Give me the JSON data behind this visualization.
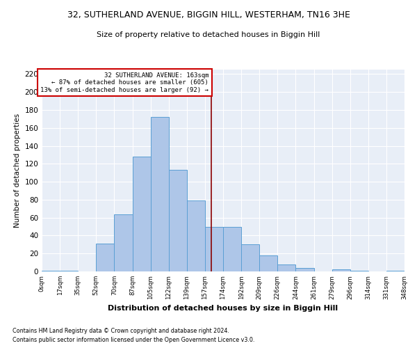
{
  "title": "32, SUTHERLAND AVENUE, BIGGIN HILL, WESTERHAM, TN16 3HE",
  "subtitle": "Size of property relative to detached houses in Biggin Hill",
  "xlabel": "Distribution of detached houses by size in Biggin Hill",
  "ylabel": "Number of detached properties",
  "footer1": "Contains HM Land Registry data © Crown copyright and database right 2024.",
  "footer2": "Contains public sector information licensed under the Open Government Licence v3.0.",
  "bin_labels": [
    "0sqm",
    "17sqm",
    "35sqm",
    "52sqm",
    "70sqm",
    "87sqm",
    "105sqm",
    "122sqm",
    "139sqm",
    "157sqm",
    "174sqm",
    "192sqm",
    "209sqm",
    "226sqm",
    "244sqm",
    "261sqm",
    "279sqm",
    "296sqm",
    "314sqm",
    "331sqm",
    "348sqm"
  ],
  "bar_heights": [
    1,
    1,
    0,
    31,
    64,
    128,
    172,
    113,
    79,
    50,
    50,
    30,
    18,
    8,
    4,
    0,
    2,
    1,
    0,
    1
  ],
  "bar_color": "#aec6e8",
  "bar_edge_color": "#5a9fd4",
  "annotation_text": "32 SUTHERLAND AVENUE: 163sqm\n← 87% of detached houses are smaller (605)\n13% of semi-detached houses are larger (92) →",
  "vline_color": "#8b0000",
  "annotation_box_color": "#ffffff",
  "annotation_box_edge_color": "#cc0000",
  "ylim": [
    0,
    225
  ],
  "yticks": [
    0,
    20,
    40,
    60,
    80,
    100,
    120,
    140,
    160,
    180,
    200,
    220
  ],
  "background_color": "#e8eef7",
  "grid_color": "#ffffff",
  "fig_background": "#ffffff"
}
